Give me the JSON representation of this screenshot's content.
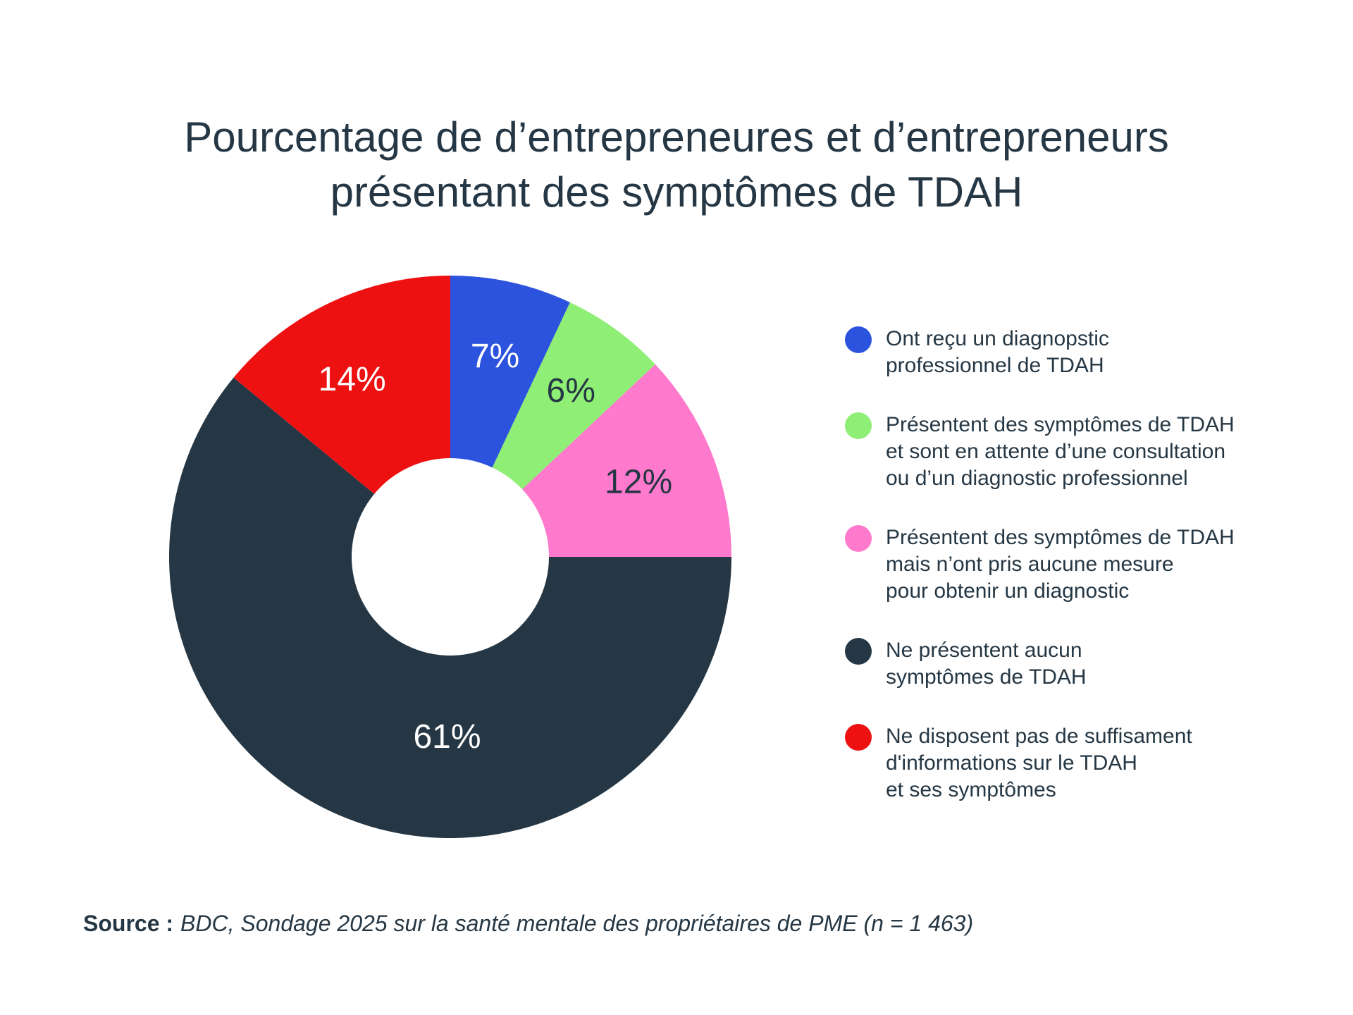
{
  "title_lines": [
    "Pourcentage de d’entrepreneures et d’entrepreneurs",
    "présentant des symptômes de TDAH"
  ],
  "colors": {
    "background": "#FFFFFF",
    "text_dark": "#253744",
    "blue": "#2C53DE",
    "green": "#8FEE75",
    "pink": "#FF79CC",
    "navy": "#253744",
    "red": "#EE1111"
  },
  "chart_data": {
    "type": "pie",
    "subtype": "donut",
    "title": "Pourcentage de d’entrepreneures et d’entrepreneurs présentant des symptômes de TDAH",
    "units": "percent",
    "total": 100,
    "inner_radius_frac": 0.352,
    "start_angle_deg": 0,
    "direction": "clockwise",
    "legend_position": "right",
    "slices": [
      {
        "value": 7,
        "pct_label": "7%",
        "color": "#2C53DE",
        "pct_label_color": "#FFFFFF",
        "label_radius_frac": 0.73,
        "legend_lines": [
          "Ont reçu un diagnopstic",
          "professionnel de TDAH"
        ]
      },
      {
        "value": 6,
        "pct_label": "6%",
        "color": "#8FEE75",
        "pct_label_color": "#253744",
        "label_radius_frac": 0.73,
        "legend_lines": [
          "Présentent des symptômes de TDAH",
          "et sont en attente d’une consultation",
          "ou d’un diagnostic professionnel"
        ]
      },
      {
        "value": 12,
        "pct_label": "12%",
        "color": "#FF79CC",
        "pct_label_color": "#253744",
        "label_radius_frac": 0.72,
        "legend_lines": [
          "Présentent des symptômes de TDAH",
          "mais n’ont pris aucune mesure",
          "pour obtenir un diagnostic"
        ]
      },
      {
        "value": 61,
        "pct_label": "61%",
        "color": "#253744",
        "pct_label_color": "#FFFFFF",
        "label_angle_deg": 181,
        "label_radius_frac": 0.64,
        "legend_lines": [
          "Ne présentent aucun",
          "symptômes de TDAH"
        ]
      },
      {
        "value": 14,
        "pct_label": "14%",
        "color": "#EE1111",
        "pct_label_color": "#FFFFFF",
        "label_angle_deg": 331,
        "label_radius_frac": 0.72,
        "legend_lines": [
          "Ne disposent pas de suffisament",
          "d'informations sur le TDAH",
          "et ses symptômes"
        ]
      }
    ]
  },
  "source": {
    "label": "Source :",
    "text": "BDC, Sondage 2025 sur la santé mentale des propriétaires de PME (n = 1 463)"
  }
}
